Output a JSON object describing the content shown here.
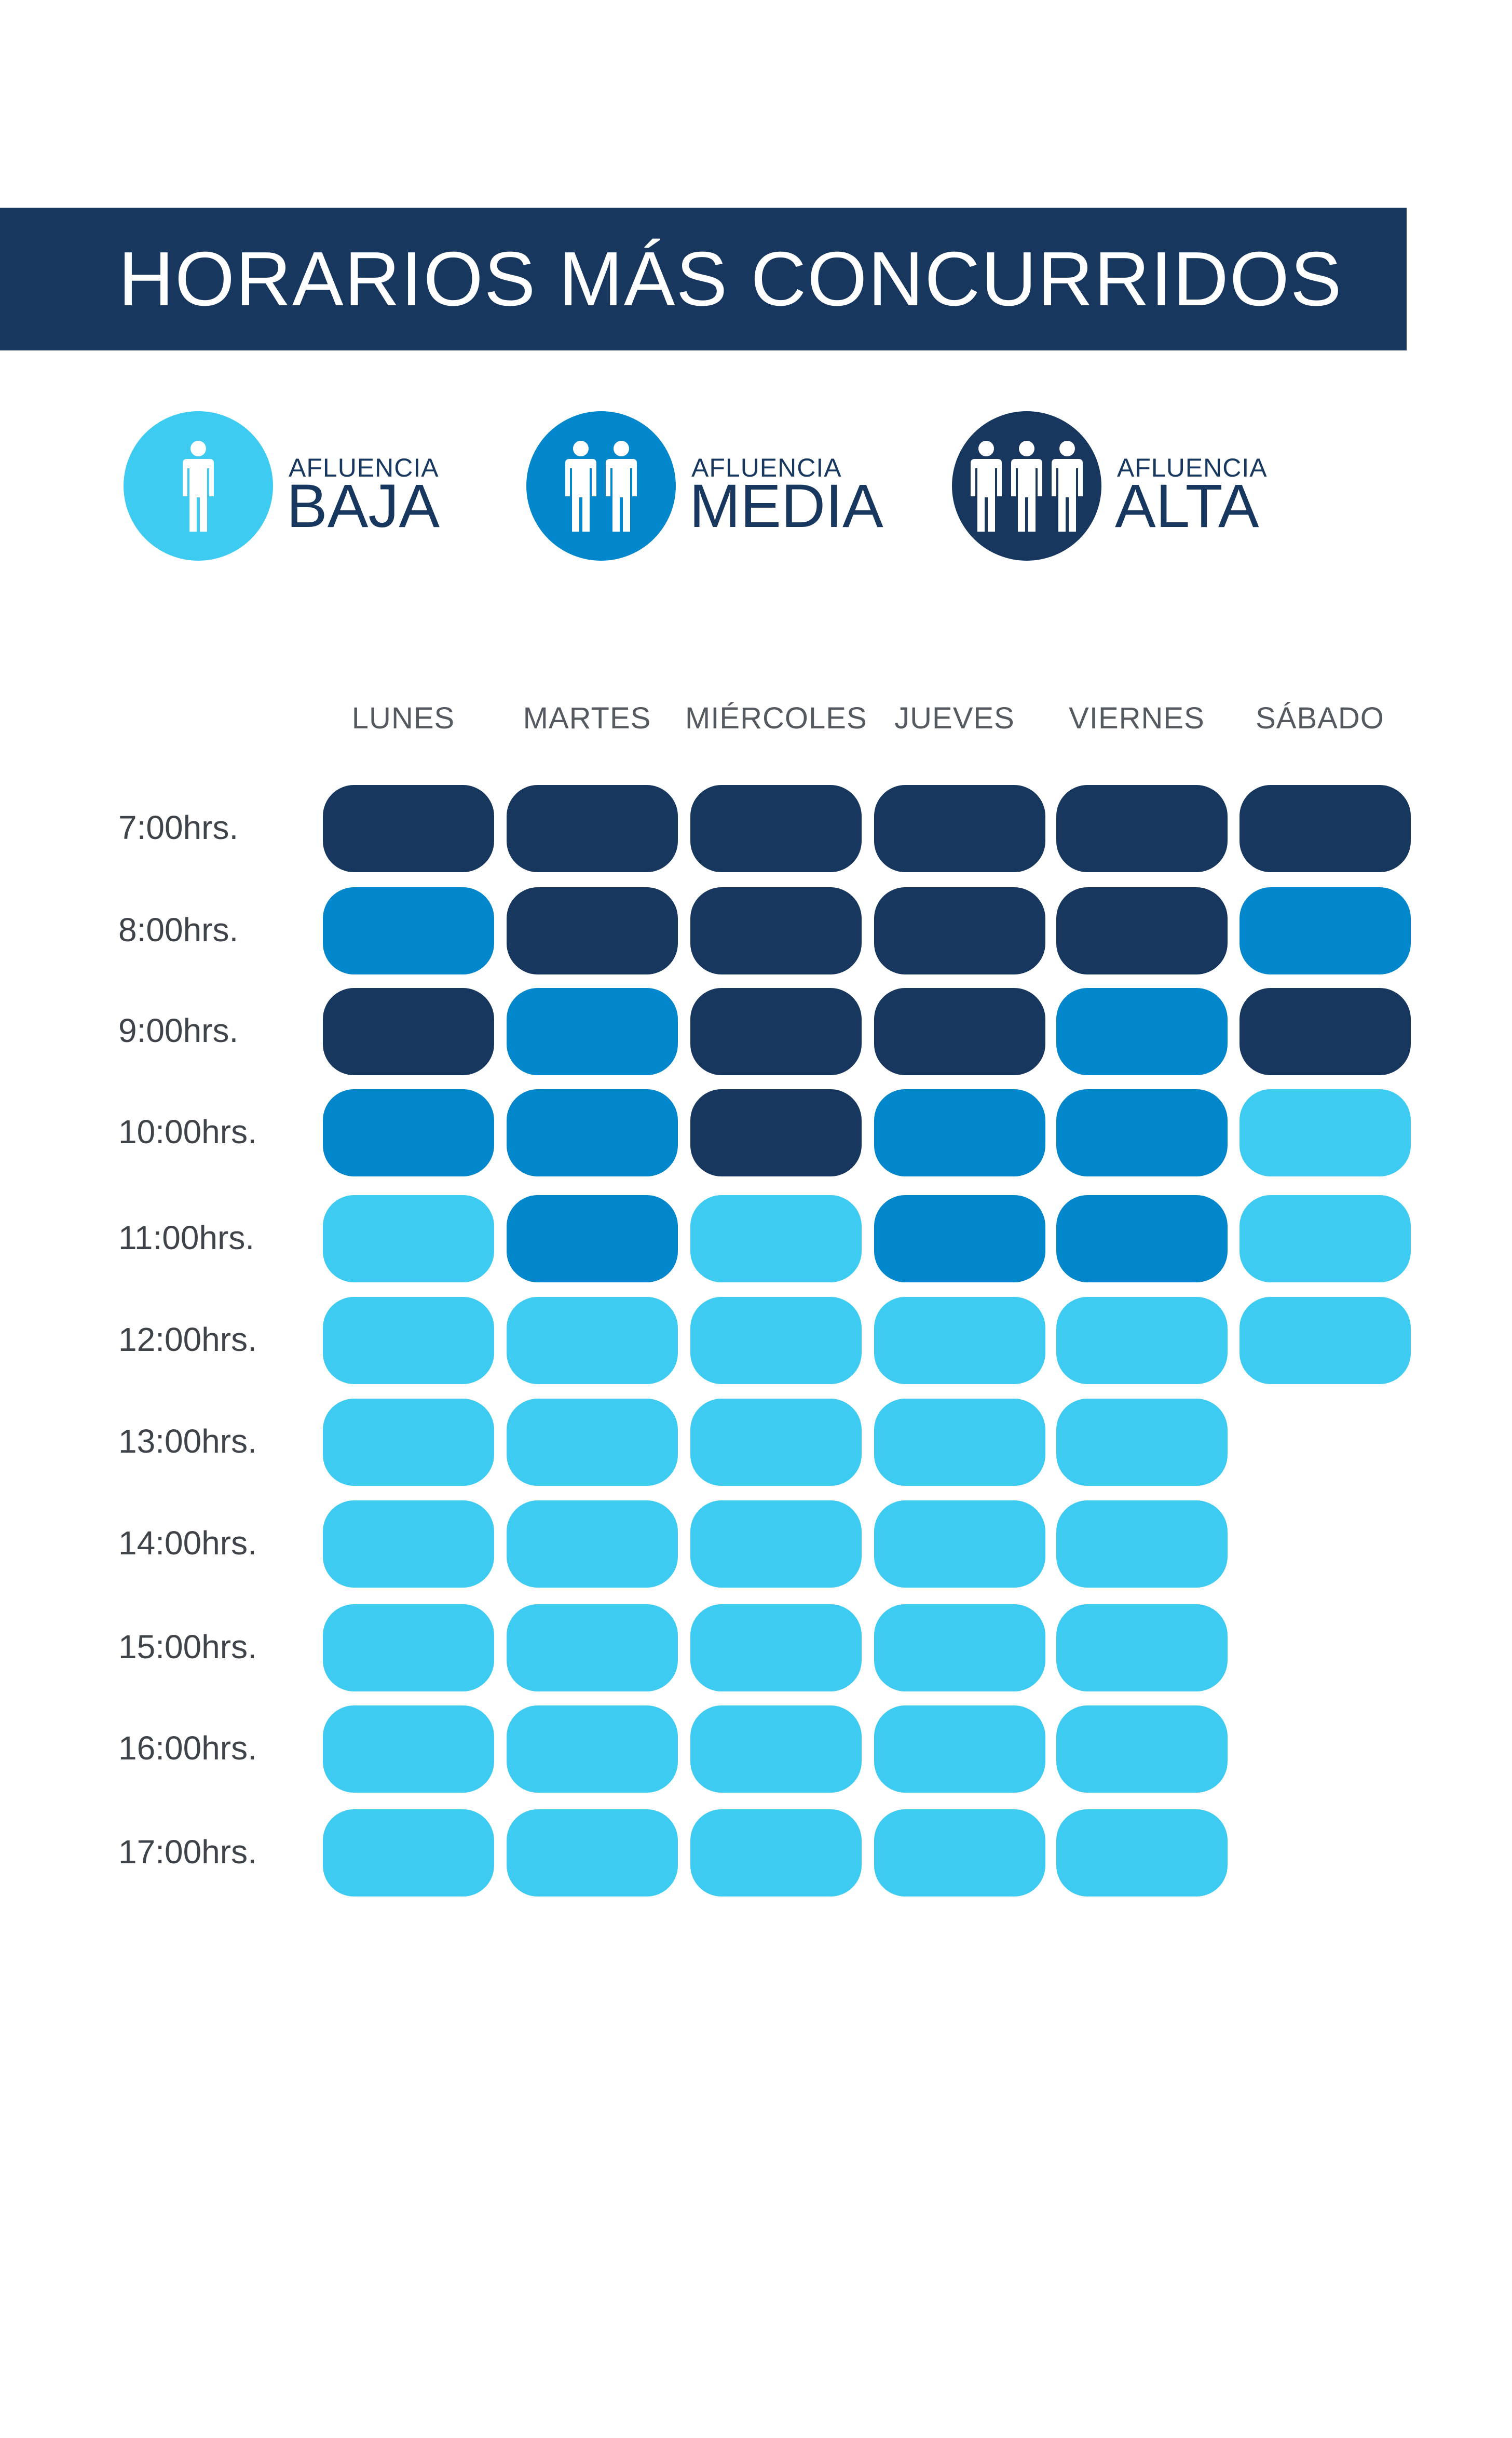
{
  "title": "HORARIOS MÁS CONCURRIDOS",
  "legend": [
    {
      "small": "AFLUENCIA",
      "big": "BAJA",
      "level": "baja",
      "people": 1,
      "color": "#3ecbf2",
      "icon": "one-person-icon"
    },
    {
      "small": "AFLUENCIA",
      "big": "MEDIA",
      "level": "media",
      "people": 2,
      "color": "#0286cc",
      "icon": "two-people-icon"
    },
    {
      "small": "AFLUENCIA",
      "big": "ALTA",
      "level": "alta",
      "people": 3,
      "color": "#17375f",
      "icon": "three-people-icon"
    }
  ],
  "colors": {
    "baja": "#3ecbf2",
    "media": "#0286cc",
    "alta": "#17375f",
    "label_text": "#17375f"
  },
  "chart_data": {
    "type": "heatmap",
    "title": "HORARIOS MÁS CONCURRIDOS",
    "columns": [
      "LUNES",
      "MARTES",
      "MIÉRCOLES",
      "JUEVES",
      "VIERNES",
      "SÁBADO"
    ],
    "rows": [
      "7:00hrs.",
      "8:00hrs.",
      "9:00hrs.",
      "10:00hrs.",
      "11:00hrs.",
      "12:00hrs.",
      "13:00hrs.",
      "14:00hrs.",
      "15:00hrs.",
      "16:00hrs.",
      "17:00hrs."
    ],
    "scale": [
      "baja",
      "media",
      "alta"
    ],
    "values": [
      [
        "alta",
        "alta",
        "alta",
        "alta",
        "alta",
        "alta"
      ],
      [
        "media",
        "alta",
        "alta",
        "alta",
        "alta",
        "media"
      ],
      [
        "alta",
        "media",
        "alta",
        "alta",
        "media",
        "alta"
      ],
      [
        "media",
        "media",
        "alta",
        "media",
        "media",
        "baja"
      ],
      [
        "baja",
        "media",
        "baja",
        "media",
        "media",
        "baja"
      ],
      [
        "baja",
        "baja",
        "baja",
        "baja",
        "baja",
        "baja"
      ],
      [
        "baja",
        "baja",
        "baja",
        "baja",
        "baja",
        null
      ],
      [
        "baja",
        "baja",
        "baja",
        "baja",
        "baja",
        null
      ],
      [
        "baja",
        "baja",
        "baja",
        "baja",
        "baja",
        null
      ],
      [
        "baja",
        "baja",
        "baja",
        "baja",
        "baja",
        null
      ],
      [
        "baja",
        "baja",
        "baja",
        "baja",
        "baja",
        null
      ]
    ]
  }
}
